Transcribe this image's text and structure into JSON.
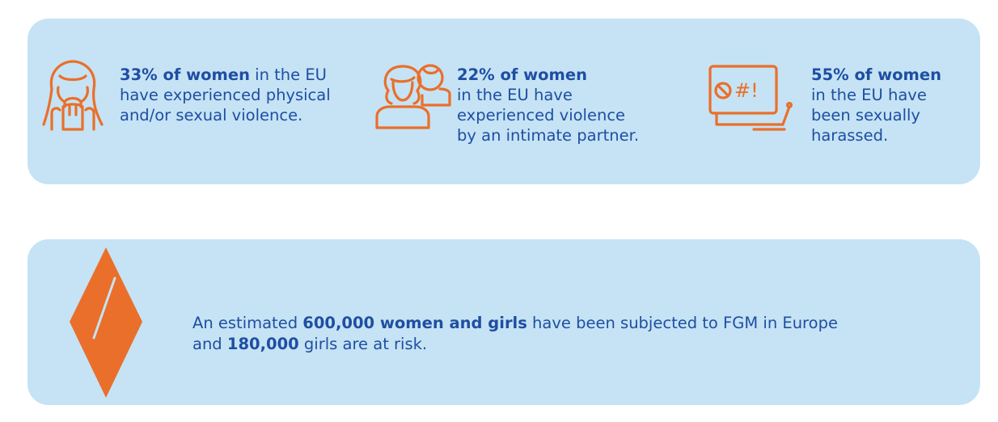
{
  "colors": {
    "panel_bg": "#c5e3f4",
    "text": "#1f4ea3",
    "accent_orange": "#ea6f2a"
  },
  "stats": [
    {
      "icon": "woman-covering-face-icon",
      "highlight": "33% of women",
      "rest_first_line": " in the EU",
      "lines": [
        "have experienced physical",
        "and/or sexual violence."
      ]
    },
    {
      "icon": "two-people-icon",
      "highlight": "22% of women",
      "rest_first_line": "",
      "lines": [
        "in the EU have",
        "experienced violence",
        "by an intimate partner."
      ]
    },
    {
      "icon": "laptop-harassment-icon",
      "highlight": "55% of women",
      "rest_first_line": "",
      "lines": [
        "in the EU have",
        "been sexually",
        "harassed."
      ],
      "icon_text": "⊘#!"
    }
  ],
  "fgm": {
    "icon": "diamond-shape-icon",
    "line1_pre": "An estimated ",
    "line1_bold": "600,000 women and girls",
    "line1_post": " have been subjected to FGM in Europe",
    "line2_pre": "and ",
    "line2_bold": "180,000",
    "line2_post": " girls are at risk."
  }
}
